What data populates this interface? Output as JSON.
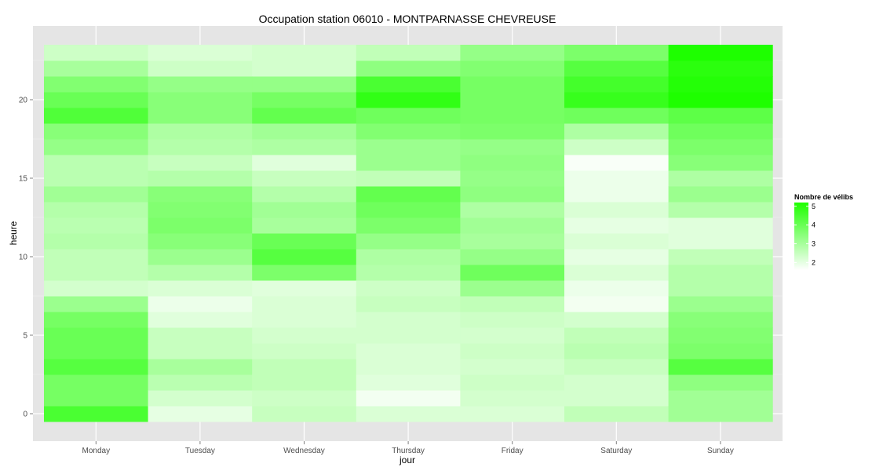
{
  "chart_data": {
    "type": "heatmap",
    "title": "Occupation station 06010 - MONTPARNASSE CHEVREUSE",
    "xlabel": "jour",
    "ylabel": "heure",
    "x_categories": [
      "Monday",
      "Tuesday",
      "Wednesday",
      "Thursday",
      "Friday",
      "Saturday",
      "Sunday"
    ],
    "y_values": [
      0,
      1,
      2,
      3,
      4,
      5,
      6,
      7,
      8,
      9,
      10,
      11,
      12,
      13,
      14,
      15,
      16,
      17,
      18,
      19,
      20,
      21,
      22,
      23
    ],
    "y_ticks": [
      0,
      5,
      10,
      15,
      20
    ],
    "ylim": [
      -0.5,
      23.5
    ],
    "grid": true,
    "legend": {
      "title": "Nombre de vélibs",
      "placement": "right",
      "ticks": [
        2,
        3,
        4,
        5
      ],
      "range": [
        1.6,
        5.2
      ],
      "color_low": "#ffffff",
      "color_high": "#1eff00"
    },
    "series": [
      {
        "x": "Monday",
        "values": [
          4.5,
          3.8,
          3.8,
          4.3,
          4.0,
          4.0,
          3.8,
          3.2,
          2.3,
          2.6,
          2.6,
          2.8,
          2.7,
          2.8,
          3.1,
          2.7,
          2.7,
          3.3,
          3.5,
          4.4,
          4.0,
          3.6,
          3.0,
          2.4
        ]
      },
      {
        "x": "Tuesday",
        "values": [
          2.0,
          2.3,
          2.7,
          3.0,
          2.5,
          2.5,
          2.1,
          1.9,
          2.2,
          2.8,
          3.2,
          3.5,
          3.7,
          3.6,
          3.5,
          2.8,
          2.5,
          2.8,
          2.9,
          3.5,
          3.5,
          3.3,
          2.4,
          2.2
        ]
      },
      {
        "x": "Wednesday",
        "values": [
          2.5,
          2.4,
          2.6,
          2.6,
          2.4,
          2.3,
          2.2,
          2.2,
          2.1,
          3.7,
          4.3,
          4.0,
          3.0,
          3.1,
          2.8,
          2.5,
          2.1,
          2.9,
          3.1,
          4.1,
          3.8,
          3.3,
          2.3,
          2.3
        ]
      },
      {
        "x": "Thursday",
        "values": [
          2.2,
          1.8,
          2.1,
          2.2,
          2.2,
          2.3,
          2.3,
          2.5,
          2.4,
          2.8,
          2.9,
          3.3,
          3.7,
          3.9,
          4.1,
          2.6,
          3.2,
          3.2,
          3.6,
          3.9,
          4.9,
          4.5,
          3.4,
          2.6
        ]
      },
      {
        "x": "Friday",
        "values": [
          2.2,
          2.3,
          2.4,
          2.3,
          2.4,
          2.3,
          2.4,
          2.6,
          3.2,
          3.9,
          3.3,
          3.0,
          3.1,
          2.9,
          3.4,
          3.3,
          3.4,
          3.3,
          3.7,
          3.8,
          3.8,
          3.8,
          3.6,
          3.3
        ]
      },
      {
        "x": "Saturday",
        "values": [
          2.6,
          2.3,
          2.3,
          2.5,
          2.7,
          2.6,
          2.3,
          1.8,
          1.9,
          2.2,
          2.0,
          2.2,
          2.0,
          2.2,
          1.9,
          1.9,
          1.7,
          2.4,
          2.9,
          3.9,
          4.8,
          4.6,
          4.3,
          3.7
        ]
      },
      {
        "x": "Sunday",
        "values": [
          3.1,
          3.1,
          3.4,
          4.3,
          3.7,
          3.6,
          3.5,
          3.2,
          2.8,
          2.8,
          2.6,
          2.1,
          2.1,
          2.8,
          3.2,
          2.9,
          3.5,
          3.7,
          3.9,
          4.2,
          5.2,
          5.1,
          5.0,
          5.2
        ]
      }
    ]
  }
}
